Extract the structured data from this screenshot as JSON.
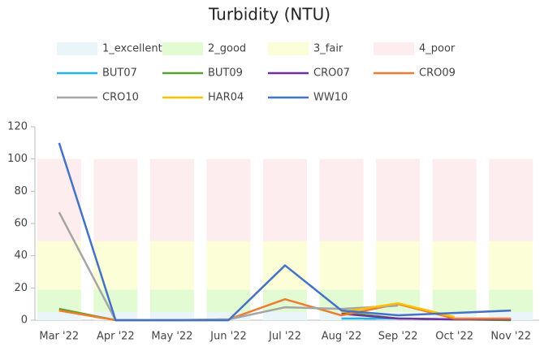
{
  "chart_data": {
    "type": "combo",
    "title": "Turbidity (NTU)",
    "categories": [
      "Mar '22",
      "Apr '22",
      "May '22",
      "Jun '22",
      "Jul '22",
      "Aug '22",
      "Sep '22",
      "Oct '22",
      "Nov '22"
    ],
    "ylim": [
      0,
      120
    ],
    "yticks": [
      0,
      20,
      40,
      60,
      80,
      100,
      120
    ],
    "series": [
      {
        "name": "1_excellent",
        "kind": "bar",
        "color": "#eaf5fa",
        "values": [
          5,
          5,
          5,
          5,
          5,
          5,
          5,
          5,
          5
        ]
      },
      {
        "name": "2_good",
        "kind": "bar",
        "color": "#e2fbd2",
        "values": [
          14,
          14,
          14,
          14,
          14,
          14,
          14,
          14,
          14
        ]
      },
      {
        "name": "3_fair",
        "kind": "bar",
        "color": "#fcfed8",
        "values": [
          30,
          30,
          30,
          30,
          30,
          30,
          30,
          30,
          30
        ]
      },
      {
        "name": "4_poor",
        "kind": "bar",
        "color": "#fdedee",
        "values": [
          51,
          51,
          51,
          51,
          51,
          51,
          51,
          51,
          51
        ]
      },
      {
        "name": "BUT07",
        "kind": "line",
        "color": "#1fb5ea",
        "values": [
          null,
          null,
          null,
          null,
          null,
          1,
          1,
          0.5,
          null
        ]
      },
      {
        "name": "BUT09",
        "kind": "line",
        "color": "#5aa02c",
        "values": [
          7,
          0,
          0,
          0,
          null,
          5,
          1,
          0.5,
          0
        ]
      },
      {
        "name": "CRO07",
        "kind": "line",
        "color": "#7030a0",
        "values": [
          null,
          null,
          null,
          null,
          null,
          4,
          1,
          0.5,
          0.5
        ]
      },
      {
        "name": "CRO09",
        "kind": "line",
        "color": "#ed7d31",
        "values": [
          6,
          0,
          0,
          0.5,
          13,
          3,
          10,
          1,
          1
        ]
      },
      {
        "name": "CRO10",
        "kind": "line",
        "color": "#a5a5a5",
        "values": [
          67,
          0,
          0,
          0.5,
          8,
          7,
          9,
          null,
          null
        ]
      },
      {
        "name": "HAR04",
        "kind": "line",
        "color": "#ffc000",
        "values": [
          null,
          null,
          null,
          null,
          null,
          5,
          10.5,
          2,
          null
        ]
      },
      {
        "name": "WW10",
        "kind": "line",
        "color": "#4472c4",
        "values": [
          110,
          0,
          0,
          0,
          34,
          6,
          3,
          4.5,
          6
        ]
      }
    ]
  }
}
